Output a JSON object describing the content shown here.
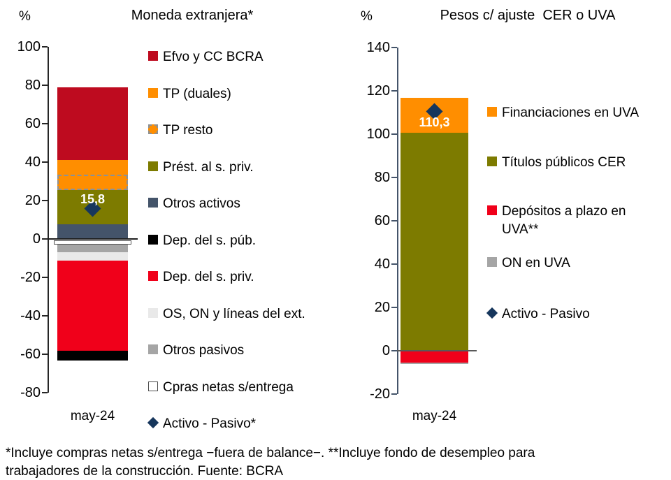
{
  "footnote": {
    "line1": "*Incluye compras netas s/entrega −fuera de balance−. **Incluye fondo de desempleo para",
    "line2": "trabajadores de la construcción. Fuente: BCRA"
  },
  "colors": {
    "dark_red": "#BE0B1F",
    "orange": "#FF8E00",
    "olive": "#7D7B00",
    "slate_blue": "#44546A",
    "black": "#000000",
    "bright_red": "#F0001A",
    "light_gray": "#E9E9E9",
    "mid_gray": "#A5A5A5",
    "white": "#FFFFFF",
    "navy": "#16365C",
    "left_axis": "#262626",
    "right_axis": "#44546A",
    "left_zero_line": "#1F1F1F",
    "right_zero_line": "#595959"
  },
  "chart_data": [
    {
      "type": "bar",
      "subtype": "stacked-column-with-marker",
      "title": "Moneda extranjera*",
      "unit_label": "%",
      "categories": [
        "may-24"
      ],
      "ylim": [
        -80,
        100
      ],
      "ytick_step": 20,
      "yticks": [
        100,
        80,
        60,
        40,
        20,
        0,
        -20,
        -40,
        -60,
        -80
      ],
      "grid": false,
      "legend_position": "right",
      "segments": [
        {
          "name": "Otros activos",
          "value": 7.6,
          "color": "#44546A",
          "style": "plain"
        },
        {
          "name": "Prést. al s. priv.",
          "value": 17.7,
          "color": "#7D7B00",
          "style": "plain"
        },
        {
          "name": "TP resto",
          "value": 8.2,
          "color": "#FF8E00",
          "style": "dashed"
        },
        {
          "name": "TP (duales)",
          "value": 7.5,
          "color": "#FF8E00",
          "style": "plain"
        },
        {
          "name": "Efvo y CC BCRA",
          "value": 38.0,
          "color": "#BE0B1F",
          "style": "plain"
        },
        {
          "name": "Cpras netas s/entrega",
          "value": -2.4,
          "color": "#FFFFFF",
          "style": "outline-white"
        },
        {
          "name": "Otros pasivos",
          "value": -4.6,
          "color": "#A5A5A5",
          "style": "plain"
        },
        {
          "name": "OS, ON y líneas del ext.",
          "value": -4.4,
          "color": "#E9E9E9",
          "style": "plain"
        },
        {
          "name": "Dep. del s. priv.",
          "value": -46.8,
          "color": "#F0001A",
          "style": "plain"
        },
        {
          "name": "Dep. del s. púb.",
          "value": -5.0,
          "color": "#000000",
          "style": "plain"
        }
      ],
      "marker": {
        "name": "Activo - Pasivo*",
        "value": 15.8,
        "label": "15,8",
        "color": "#16365C"
      },
      "legend": [
        {
          "label": "Efvo y CC BCRA",
          "swatch": "square",
          "color": "#BE0B1F"
        },
        {
          "label": "TP (duales)",
          "swatch": "square",
          "color": "#FF8E00"
        },
        {
          "label": "TP resto",
          "swatch": "dashed",
          "color": "#FF8E00"
        },
        {
          "label": "Prést. al s. priv.",
          "swatch": "square",
          "color": "#7D7B00"
        },
        {
          "label": "Otros activos",
          "swatch": "square",
          "color": "#44546A"
        },
        {
          "label": "Dep. del s. púb.",
          "swatch": "square",
          "color": "#000000"
        },
        {
          "label": "Dep. del s. priv.",
          "swatch": "square",
          "color": "#F0001A"
        },
        {
          "label": "OS, ON y líneas del ext.",
          "swatch": "square",
          "color": "#E9E9E9"
        },
        {
          "label": "Otros pasivos",
          "swatch": "square",
          "color": "#A5A5A5"
        },
        {
          "label": "Cpras netas s/entrega",
          "swatch": "outline-white",
          "color": "#FFFFFF"
        },
        {
          "label": "Activo - Pasivo*",
          "swatch": "diamond",
          "color": "#16365C"
        }
      ]
    },
    {
      "type": "bar",
      "subtype": "stacked-column-with-marker",
      "title": "Pesos c/ ajuste  CER o UVA",
      "unit_label": "%",
      "categories": [
        "may-24"
      ],
      "ylim": [
        -20,
        140
      ],
      "ytick_step": 20,
      "yticks": [
        140,
        120,
        100,
        80,
        60,
        40,
        20,
        0,
        -20
      ],
      "grid": false,
      "legend_position": "right",
      "segments": [
        {
          "name": "Títulos públicos CER",
          "value": 100.4,
          "color": "#7D7B00",
          "style": "plain"
        },
        {
          "name": "Financiaciones en UVA",
          "value": 16.2,
          "color": "#FF8E00",
          "style": "plain"
        },
        {
          "name": "Depósitos a plazo en UVA**",
          "value": -5.8,
          "color": "#F0001A",
          "style": "plain"
        },
        {
          "name": "ON en UVA",
          "value": -0.5,
          "color": "#A5A5A5",
          "style": "plain"
        }
      ],
      "marker": {
        "name": "Activo - Pasivo",
        "value": 110.3,
        "label": "110,3",
        "color": "#16365C"
      },
      "legend": [
        {
          "label": "Financiaciones en UVA",
          "swatch": "square",
          "color": "#FF8E00"
        },
        {
          "label": "Títulos públicos CER",
          "swatch": "square",
          "color": "#7D7B00"
        },
        {
          "label": "Depósitos a plazo en UVA**",
          "swatch": "square",
          "color": "#F0001A"
        },
        {
          "label": "ON en UVA",
          "swatch": "square",
          "color": "#A5A5A5"
        },
        {
          "label": "Activo - Pasivo",
          "swatch": "diamond",
          "color": "#16365C"
        }
      ]
    }
  ]
}
